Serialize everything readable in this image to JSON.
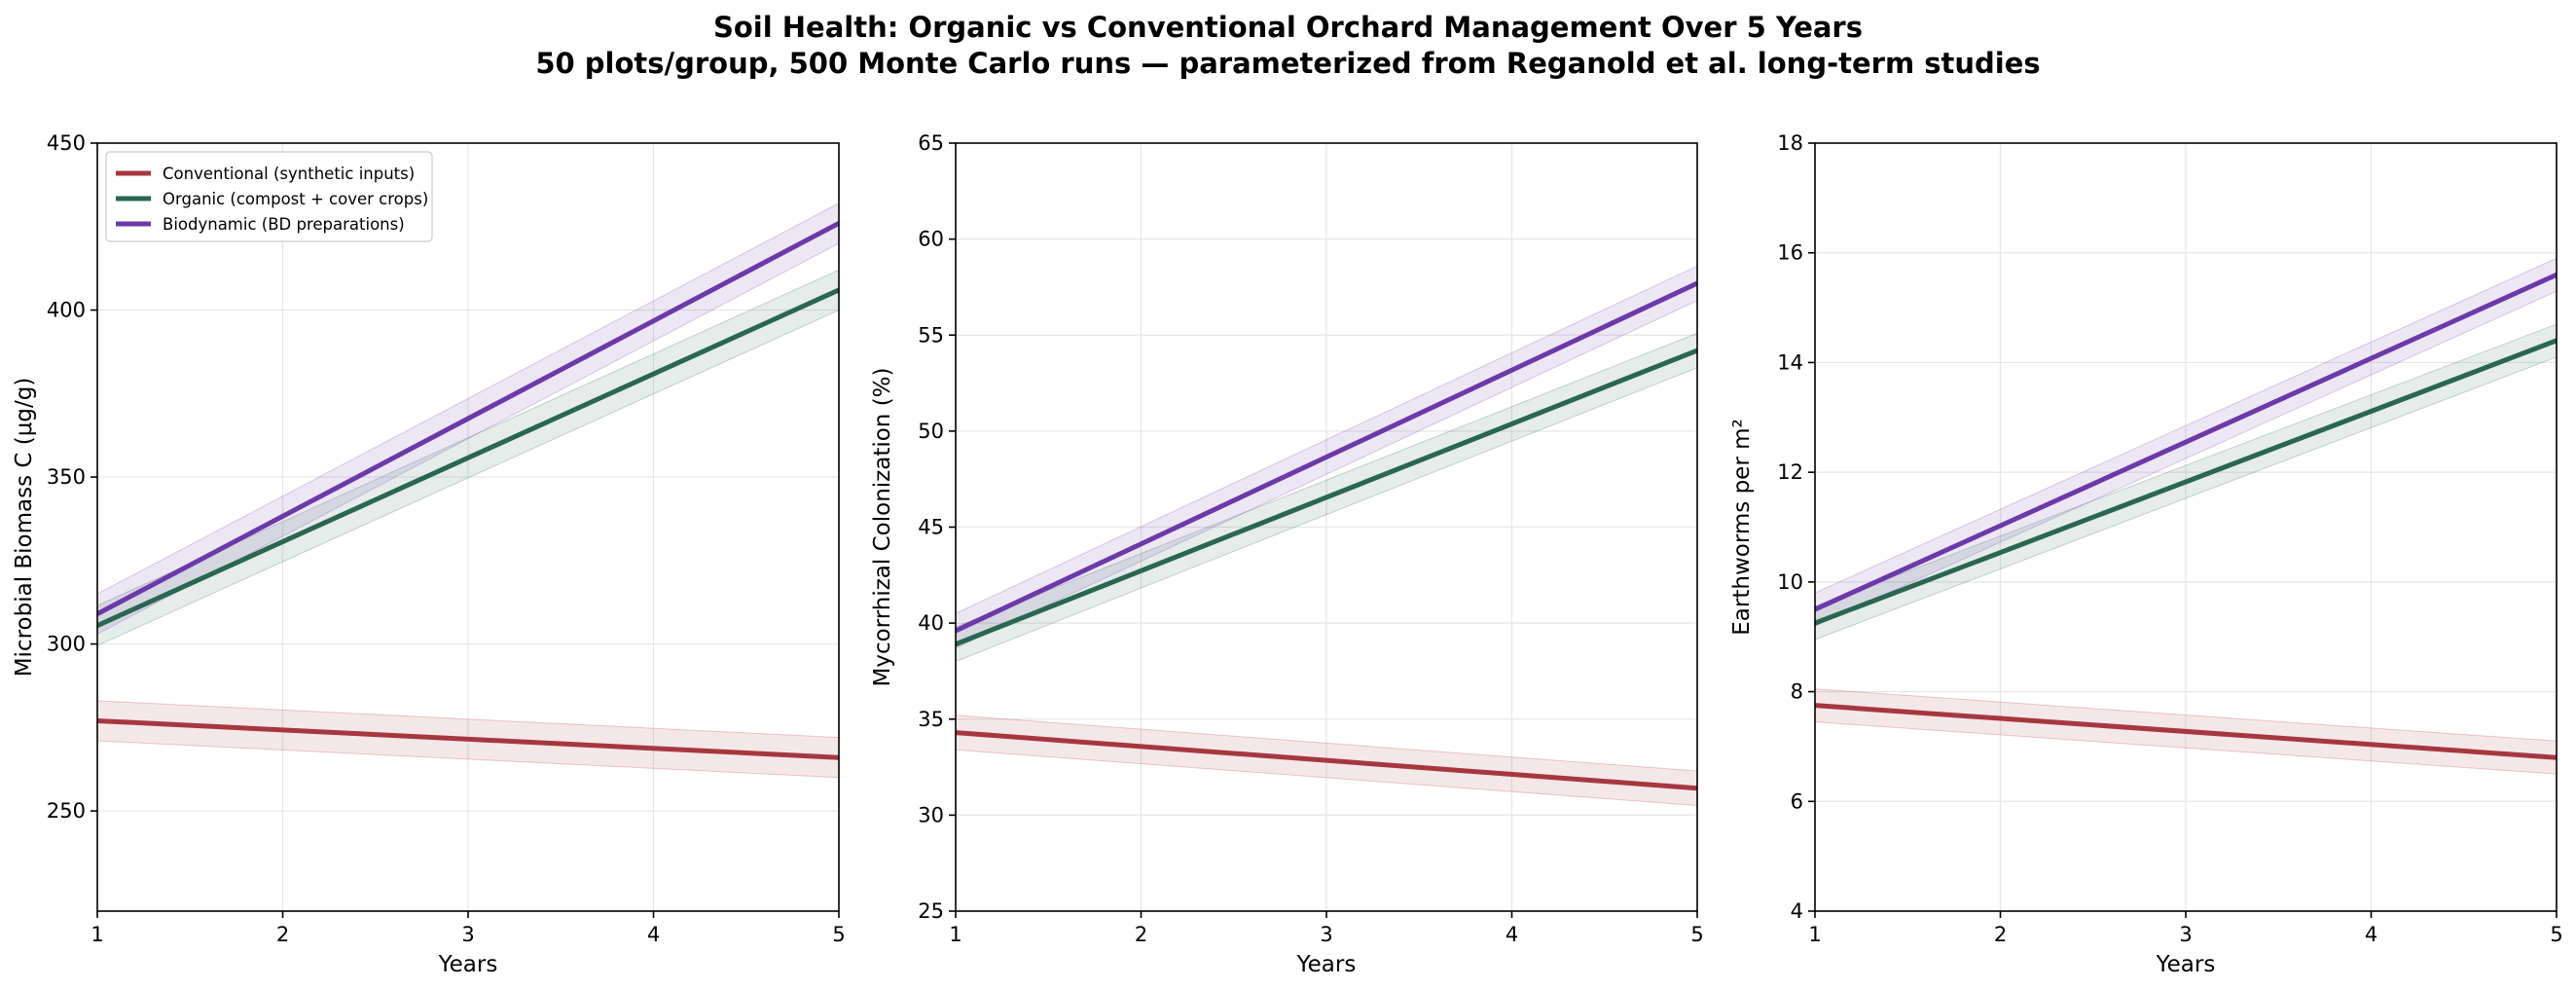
{
  "figure": {
    "title": "Soil Health: Organic vs Conventional Orchard Management Over 5 Years",
    "subtitle": "50 plots/group, 500 Monte Carlo runs — parameterized from Reganold et al. long-term studies"
  },
  "colors": {
    "conventional": "#a6373f",
    "organic": "#2a6650",
    "biodynamic": "#6b3aa8",
    "grid": "#e6e6e6",
    "axis": "#000000"
  },
  "chart_data": [
    {
      "type": "line",
      "title": "",
      "xlabel": "Years",
      "ylabel": "Microbial Biomass C (μg/g)",
      "xlim": [
        1,
        5
      ],
      "ylim": [
        220,
        450
      ],
      "xticks": [
        1,
        2,
        3,
        4,
        5
      ],
      "yticks": [
        250,
        300,
        350,
        400,
        450
      ],
      "grid": true,
      "legend": "upper-left",
      "series": [
        {
          "key": "conventional",
          "name": "Conventional (synthetic inputs)",
          "x": [
            1,
            5
          ],
          "values": [
            277,
            266
          ],
          "band_halfwidth": 6
        },
        {
          "key": "organic",
          "name": "Organic (compost + cover crops)",
          "x": [
            1,
            5
          ],
          "values": [
            305.5,
            406
          ],
          "band_halfwidth": 6
        },
        {
          "key": "biodynamic",
          "name": "Biodynamic (BD preparations)",
          "x": [
            1,
            5
          ],
          "values": [
            309,
            426
          ],
          "band_halfwidth": 6
        }
      ]
    },
    {
      "type": "line",
      "title": "",
      "xlabel": "Years",
      "ylabel": "Mycorrhizal Colonization (%)",
      "xlim": [
        1,
        5
      ],
      "ylim": [
        25,
        65
      ],
      "xticks": [
        1,
        2,
        3,
        4,
        5
      ],
      "yticks": [
        25,
        30,
        35,
        40,
        45,
        50,
        55,
        60,
        65
      ],
      "grid": true,
      "legend": "none",
      "series": [
        {
          "key": "conventional",
          "name": "Conventional (synthetic inputs)",
          "x": [
            1,
            5
          ],
          "values": [
            34.3,
            31.4
          ],
          "band_halfwidth": 0.9
        },
        {
          "key": "organic",
          "name": "Organic (compost + cover crops)",
          "x": [
            1,
            5
          ],
          "values": [
            38.9,
            54.2
          ],
          "band_halfwidth": 0.9
        },
        {
          "key": "biodynamic",
          "name": "Biodynamic (BD preparations)",
          "x": [
            1,
            5
          ],
          "values": [
            39.6,
            57.7
          ],
          "band_halfwidth": 0.9
        }
      ]
    },
    {
      "type": "line",
      "title": "",
      "xlabel": "Years",
      "ylabel": "Earthworms per m²",
      "xlim": [
        1,
        5
      ],
      "ylim": [
        4,
        18
      ],
      "xticks": [
        1,
        2,
        3,
        4,
        5
      ],
      "yticks": [
        4,
        6,
        8,
        10,
        12,
        14,
        16,
        18
      ],
      "grid": true,
      "legend": "none",
      "series": [
        {
          "key": "conventional",
          "name": "Conventional (synthetic inputs)",
          "x": [
            1,
            5
          ],
          "values": [
            7.75,
            6.8
          ],
          "band_halfwidth": 0.3
        },
        {
          "key": "organic",
          "name": "Organic (compost + cover crops)",
          "x": [
            1,
            5
          ],
          "values": [
            9.25,
            14.4
          ],
          "band_halfwidth": 0.3
        },
        {
          "key": "biodynamic",
          "name": "Biodynamic (BD preparations)",
          "x": [
            1,
            5
          ],
          "values": [
            9.5,
            15.6
          ],
          "band_halfwidth": 0.3
        }
      ]
    }
  ]
}
